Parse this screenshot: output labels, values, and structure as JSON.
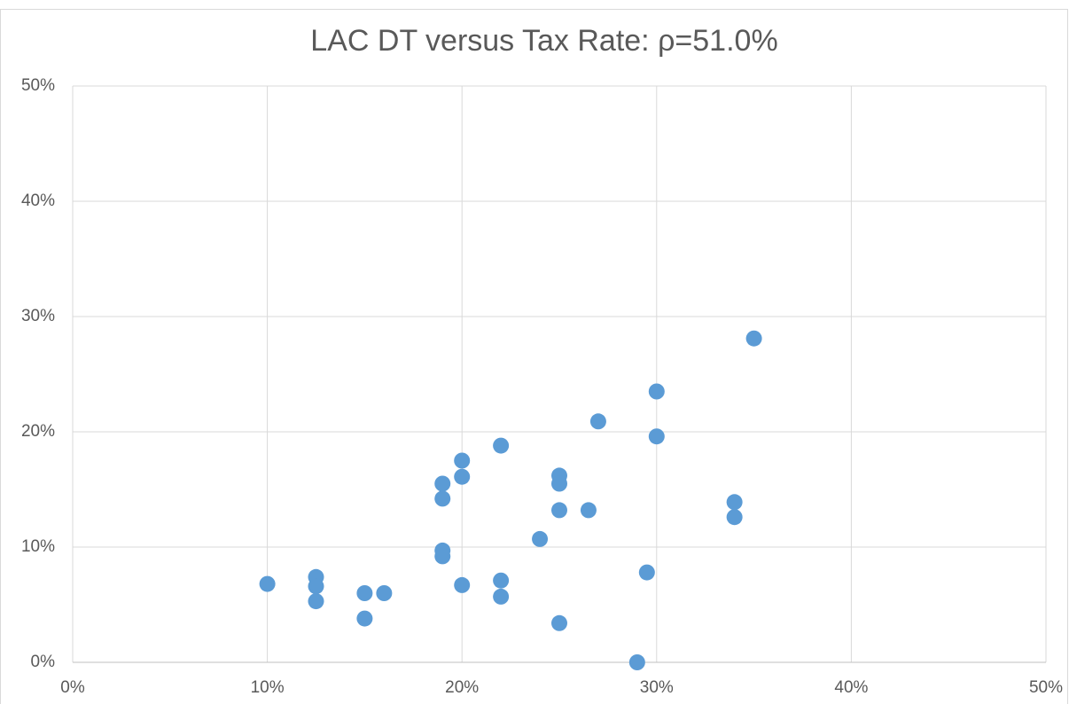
{
  "chart_data": {
    "type": "scatter",
    "title": "LAC DT versus Tax Rate: ρ=51.0%",
    "series": [
      {
        "color": "#5b9bd5",
        "x": [
          10,
          12.5,
          12.5,
          12.5,
          15,
          15,
          16,
          19,
          19,
          19,
          19,
          20,
          20,
          20,
          22,
          22,
          22,
          24,
          25,
          25,
          25,
          25,
          26.5,
          27,
          29,
          29.5,
          30,
          30,
          34,
          34,
          35
        ],
        "values": [
          6.8,
          7.4,
          6.6,
          5.3,
          6.0,
          3.8,
          6.0,
          15.5,
          14.2,
          9.7,
          9.2,
          17.5,
          16.1,
          6.7,
          18.8,
          7.1,
          5.7,
          10.7,
          16.2,
          15.5,
          13.2,
          3.4,
          13.2,
          20.9,
          0,
          7.8,
          23.5,
          19.6,
          13.9,
          12.6,
          28.1
        ]
      }
    ],
    "xlim": [
      0,
      50
    ],
    "xticks": [
      {
        "value": 0,
        "label": "0%"
      },
      {
        "value": 10,
        "label": "10%"
      },
      {
        "value": 20,
        "label": "20%"
      },
      {
        "value": 30,
        "label": "30%"
      },
      {
        "value": 40,
        "label": "40%"
      },
      {
        "value": 50,
        "label": "50%"
      }
    ],
    "ylim": [
      0,
      50
    ],
    "yticks": [
      {
        "value": 0,
        "label": "0%"
      },
      {
        "value": 10,
        "label": "10%"
      },
      {
        "value": 20,
        "label": "20%"
      },
      {
        "value": 30,
        "label": "30%"
      },
      {
        "value": 40,
        "label": "40%"
      },
      {
        "value": 50,
        "label": "50%"
      }
    ],
    "grid": true
  }
}
